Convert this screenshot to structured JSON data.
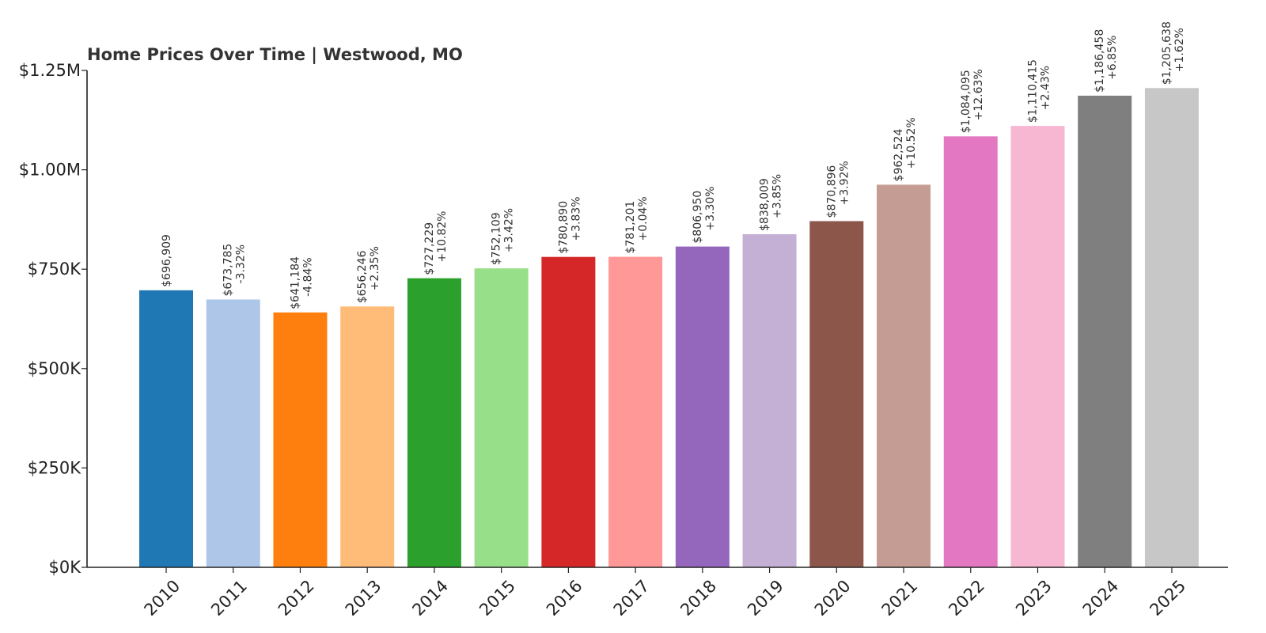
{
  "chart_data": {
    "type": "bar",
    "title": "Home Prices Over Time | Westwood, MO",
    "xlabel": "",
    "ylabel": "",
    "ylim": [
      0,
      1250000
    ],
    "grid": false,
    "legend": "none",
    "y_ticks": [
      {
        "value": 0,
        "label": "$0K"
      },
      {
        "value": 250000,
        "label": "$250K"
      },
      {
        "value": 500000,
        "label": "$500K"
      },
      {
        "value": 750000,
        "label": "$750K"
      },
      {
        "value": 1000000,
        "label": "$1.00M"
      },
      {
        "value": 1250000,
        "label": "$1.25M"
      }
    ],
    "categories": [
      "2010",
      "2011",
      "2012",
      "2013",
      "2014",
      "2015",
      "2016",
      "2017",
      "2018",
      "2019",
      "2020",
      "2021",
      "2022",
      "2023",
      "2024",
      "2025"
    ],
    "values": [
      696909,
      673785,
      641184,
      656246,
      727229,
      752109,
      780890,
      781201,
      806950,
      838009,
      870896,
      962524,
      1084095,
      1110415,
      1186458,
      1205638
    ],
    "value_labels": [
      "$696,909",
      "$673,785",
      "$641,184",
      "$656,246",
      "$727,229",
      "$752,109",
      "$780,890",
      "$781,201",
      "$806,950",
      "$838,009",
      "$870,896",
      "$962,524",
      "$1,084,095",
      "$1,110,415",
      "$1,186,458",
      "$1,205,638"
    ],
    "change_labels": [
      "",
      "-3.32%",
      "-4.84%",
      "+2.35%",
      "+10.82%",
      "+3.42%",
      "+3.83%",
      "+0.04%",
      "+3.30%",
      "+3.85%",
      "+3.92%",
      "+10.52%",
      "+12.63%",
      "+2.43%",
      "+6.85%",
      "+1.62%"
    ],
    "colors": [
      "#1f77b4",
      "#aec7e8",
      "#ff7f0e",
      "#ffbb78",
      "#2ca02c",
      "#98df8a",
      "#d62728",
      "#ff9896",
      "#9467bd",
      "#c5b0d5",
      "#8c564b",
      "#c49c94",
      "#e377c2",
      "#f7b6d2",
      "#7f7f7f",
      "#c7c7c7"
    ]
  }
}
